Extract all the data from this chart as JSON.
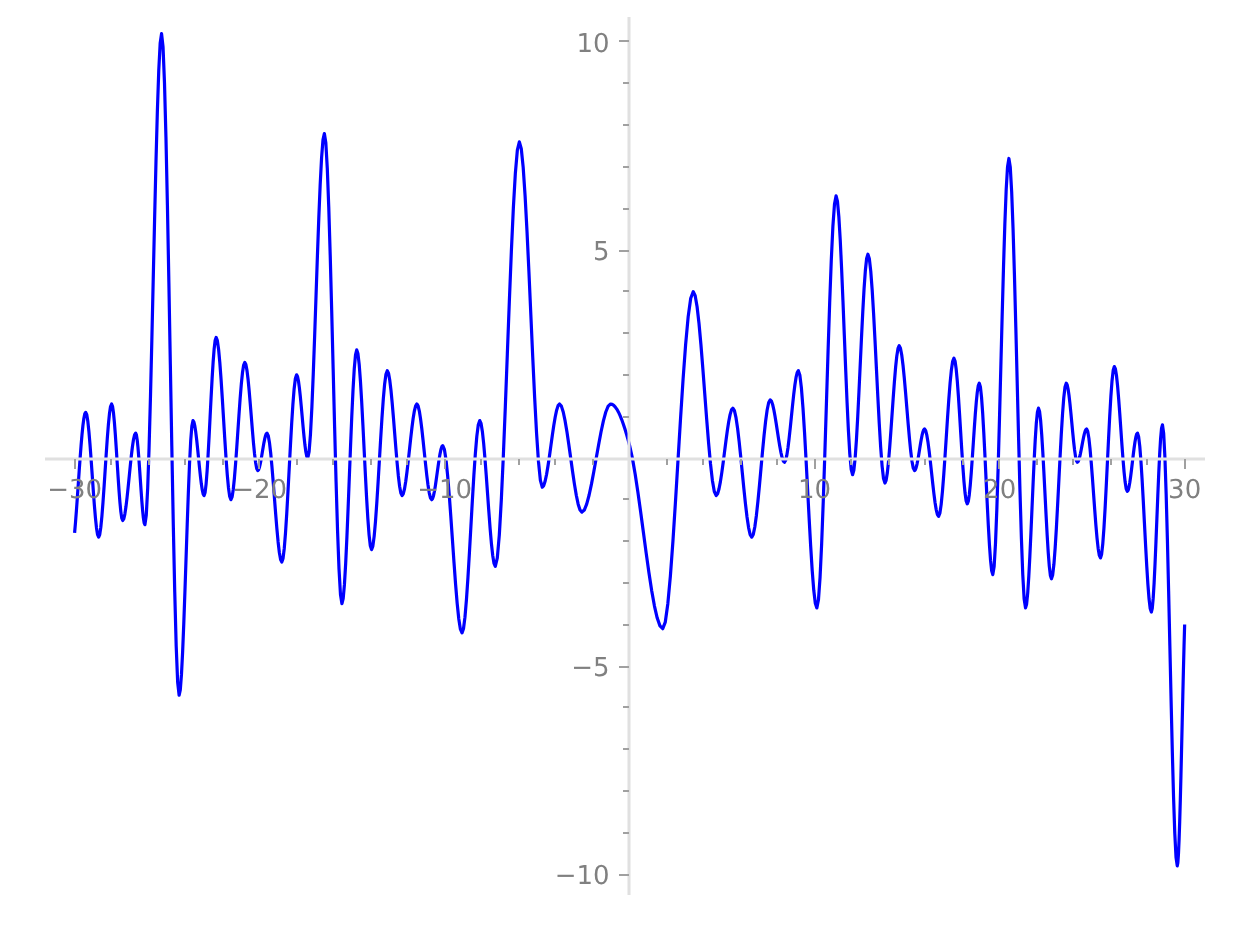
{
  "chart_data": {
    "type": "line",
    "x": [
      -30,
      -29.4,
      -28.7,
      -28.0,
      -27.4,
      -26.7,
      -26.2,
      -25.3,
      -24.35,
      -23.6,
      -23.0,
      -22.35,
      -21.55,
      -20.8,
      -20.1,
      -19.6,
      -18.8,
      -18.0,
      -17.4,
      -16.5,
      -15.55,
      -14.75,
      -13.95,
      -13.1,
      -12.3,
      -11.5,
      -10.7,
      -10.1,
      -9.06,
      -8.1,
      -7.26,
      -5.96,
      -4.72,
      -3.79,
      -2.58,
      -1.03,
      0,
      1.79,
      3.44,
      4.68,
      5.58,
      6.6,
      7.6,
      8.37,
      9.12,
      10.12,
      11.16,
      12.05,
      12.88,
      13.8,
      14.57,
      15.4,
      15.94,
      16.7,
      17.53,
      18.25,
      18.9,
      19.63,
      20.5,
      21.4,
      22.1,
      22.8,
      23.6,
      24.2,
      24.7,
      25.45,
      26.2,
      26.9,
      27.45,
      28.2,
      28.8,
      29.6,
      30
    ],
    "series": [
      {
        "color": "#0000ff",
        "values": [
          -1.8,
          1.1,
          -1.9,
          1.3,
          -1.5,
          0.6,
          -1.6,
          10.2,
          -5.7,
          0.9,
          -0.9,
          2.9,
          -1.0,
          2.3,
          -0.3,
          0.6,
          -2.5,
          2.0,
          0.0,
          7.8,
          -3.5,
          2.6,
          -2.2,
          2.1,
          -0.9,
          1.3,
          -1.0,
          0.3,
          -4.2,
          0.9,
          -2.6,
          7.6,
          -0.7,
          1.3,
          -1.3,
          1.3,
          0.3,
          -4.1,
          4.0,
          -0.9,
          1.2,
          -1.9,
          1.4,
          -0.1,
          2.1,
          -3.6,
          6.3,
          -0.4,
          4.9,
          -0.6,
          2.7,
          -0.3,
          0.7,
          -1.4,
          2.4,
          -1.1,
          1.8,
          -2.8,
          7.2,
          -3.6,
          1.2,
          -2.9,
          1.8,
          -0.1,
          0.7,
          -2.4,
          2.2,
          -0.8,
          0.6,
          -3.7,
          0.8,
          -9.8,
          -4.0
        ]
      }
    ],
    "xlim": [
      -31.6,
      31.1
    ],
    "ylim": [
      -10.5,
      10.6
    ],
    "xticks": [
      -30,
      {
        "value": -28,
        "label": null
      },
      {
        "value": -26,
        "label": null
      },
      {
        "value": -24,
        "label": null
      },
      {
        "value": -22,
        "label": null
      },
      -20,
      {
        "value": -18,
        "label": null
      },
      {
        "value": -16,
        "label": null
      },
      {
        "value": -14,
        "label": null
      },
      {
        "value": -12,
        "label": null
      },
      -10,
      {
        "value": -8,
        "label": null
      },
      {
        "value": -6,
        "label": null
      },
      {
        "value": -4,
        "label": null
      },
      {
        "value": -2,
        "label": null
      },
      {
        "value": 2,
        "label": null
      },
      {
        "value": 4,
        "label": null
      },
      {
        "value": 6,
        "label": null
      },
      {
        "value": 8,
        "label": null
      },
      10,
      {
        "value": 12,
        "label": null
      },
      {
        "value": 14,
        "label": null
      },
      {
        "value": 16,
        "label": null
      },
      {
        "value": 18,
        "label": null
      },
      20,
      {
        "value": 22,
        "label": null
      },
      {
        "value": 24,
        "label": null
      },
      {
        "value": 26,
        "label": null
      },
      {
        "value": 28,
        "label": null
      },
      30
    ],
    "yticks": [
      -10,
      {
        "value": -9,
        "label": null
      },
      {
        "value": -8,
        "label": null
      },
      {
        "value": -7,
        "label": null
      },
      {
        "value": -6,
        "label": null
      },
      -5,
      {
        "value": -4,
        "label": null
      },
      {
        "value": -3,
        "label": null
      },
      {
        "value": -2,
        "label": null
      },
      {
        "value": -1,
        "label": null
      },
      {
        "value": 1,
        "label": null
      },
      {
        "value": 2,
        "label": null
      },
      {
        "value": 3,
        "label": null
      },
      {
        "value": 4,
        "label": null
      },
      5,
      {
        "value": 6,
        "label": null
      },
      {
        "value": 7,
        "label": null
      },
      {
        "value": 8,
        "label": null
      },
      {
        "value": 9,
        "label": null
      },
      10
    ],
    "grid": false,
    "marker": "none",
    "line_style": "solid"
  }
}
